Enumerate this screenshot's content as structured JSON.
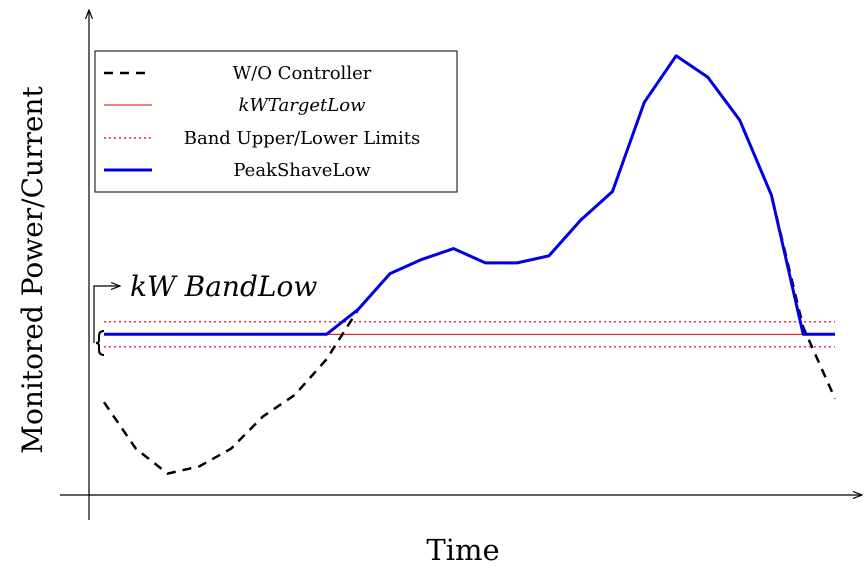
{
  "chart_data": {
    "type": "line",
    "title": "",
    "xlabel": "Time",
    "ylabel": "Monitored Power/Current",
    "axis_ticks": false,
    "grid": false,
    "legend_placement": "top-left",
    "xlim": [
      0,
      23
    ],
    "ylim": [
      0,
      13.5
    ],
    "x": [
      0,
      1,
      2,
      3,
      4,
      5,
      6,
      7,
      8,
      9,
      10,
      11,
      12,
      13,
      14,
      15,
      16,
      17,
      18,
      19,
      20,
      21,
      22,
      23
    ],
    "series": [
      {
        "name": "W/O Controller",
        "style": "dashed",
        "color": "#000000",
        "values": [
          2.6,
          1.3,
          0.6,
          0.8,
          1.3,
          2.2,
          2.8,
          3.8,
          5.2,
          6.2,
          6.6,
          6.9,
          6.5,
          6.5,
          6.7,
          7.7,
          8.5,
          11.0,
          12.3,
          11.7,
          10.5,
          8.4,
          4.7,
          2.7
        ]
      },
      {
        "name": "kWTargetLow",
        "style": "solid",
        "color": "#e00000",
        "x_range": [
          0,
          23
        ],
        "value": 4.5
      },
      {
        "name": "Band Upper/Lower Limits",
        "style": "dotted",
        "color": "#c00000",
        "x_range": [
          0,
          23
        ],
        "upper": 4.85,
        "lower": 4.15
      },
      {
        "name": "PeakShaveLow",
        "style": "solid",
        "color": "#0000e0",
        "values": [
          4.5,
          4.5,
          4.5,
          4.5,
          4.5,
          4.5,
          4.5,
          4.5,
          5.2,
          6.2,
          6.6,
          6.9,
          6.5,
          6.5,
          6.7,
          7.7,
          8.5,
          11.0,
          12.3,
          11.7,
          10.5,
          8.4,
          4.5,
          4.5
        ]
      }
    ],
    "annotation": {
      "text": "kW BandLow",
      "target": "band between upper and lower limits"
    }
  }
}
